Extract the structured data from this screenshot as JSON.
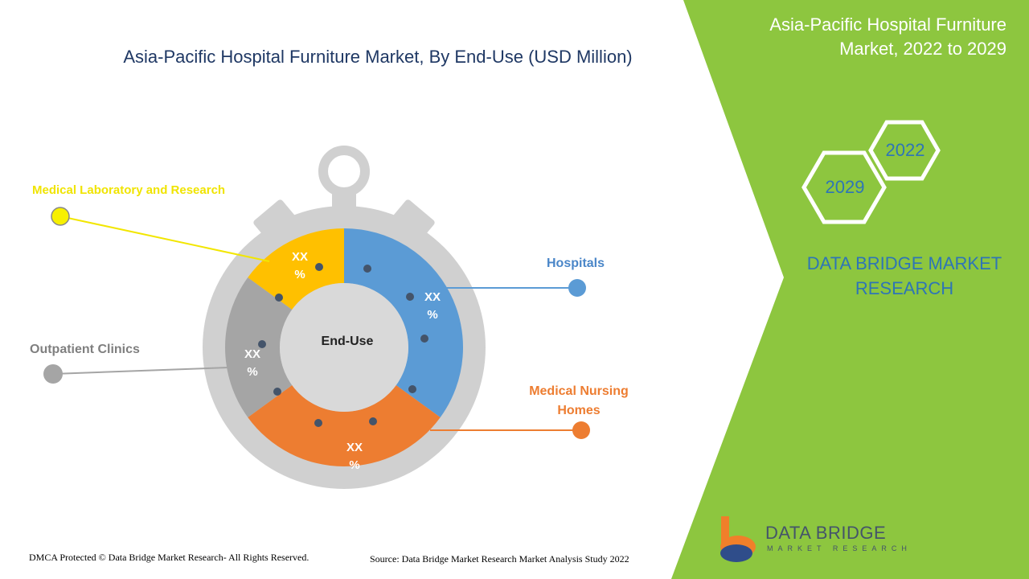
{
  "title": "Asia-Pacific Hospital Furniture Market, By End-Use (USD Million)",
  "banner": {
    "title": "Asia-Pacific Hospital Furniture Market, 2022 to 2029",
    "years": [
      "2022",
      "2029"
    ],
    "brand": "DATA BRIDGE MARKET RESEARCH"
  },
  "center_label": "End-Use",
  "segments": [
    {
      "name": "Hospitals",
      "label": "XX %"
    },
    {
      "name": "Medical Nursing Homes",
      "label": "XX %"
    },
    {
      "name": "Outpatient Clinics",
      "label": "XX %"
    },
    {
      "name": "Medical Laboratory and Research",
      "label": "XX %"
    }
  ],
  "logo": {
    "name": "DATA BRIDGE",
    "tagline": "MARKET RESEARCH"
  },
  "footer": {
    "copyright": "DMCA Protected © Data Bridge Market Research- All Rights Reserved.",
    "source": "Source: Data Bridge Market Research Market Analysis Study 2022"
  }
}
